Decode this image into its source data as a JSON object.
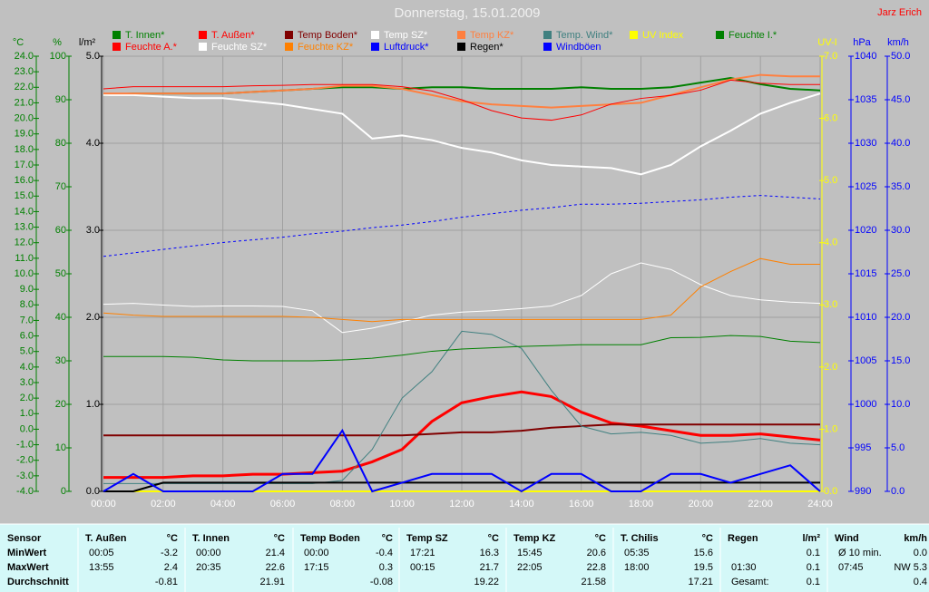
{
  "chart_data": {
    "type": "line",
    "title": "Donnerstag, 15.01.2009",
    "author": "Jarz Erich",
    "x": [
      0,
      1,
      2,
      3,
      4,
      5,
      6,
      7,
      8,
      9,
      10,
      11,
      12,
      13,
      14,
      15,
      16,
      17,
      18,
      19,
      20,
      21,
      22,
      23,
      24
    ],
    "xlim": [
      0,
      24
    ],
    "xticks": [
      {
        "value": 0,
        "label": "00:00"
      },
      {
        "value": 2,
        "label": "02:00"
      },
      {
        "value": 4,
        "label": "04:00"
      },
      {
        "value": 6,
        "label": "06:00"
      },
      {
        "value": 8,
        "label": "08:00"
      },
      {
        "value": 10,
        "label": "10:00"
      },
      {
        "value": 12,
        "label": "12:00"
      },
      {
        "value": 14,
        "label": "14:00"
      },
      {
        "value": 16,
        "label": "16:00"
      },
      {
        "value": 18,
        "label": "18:00"
      },
      {
        "value": 20,
        "label": "20:00"
      },
      {
        "value": 22,
        "label": "22:00"
      },
      {
        "value": 24,
        "label": "24:00"
      }
    ],
    "axes": [
      {
        "label": "°C",
        "color": "#008000",
        "lim": [
          -4,
          24
        ],
        "ticks": [
          {
            "value": -4,
            "label": "-4.0"
          },
          {
            "value": -3,
            "label": "-3.0"
          },
          {
            "value": -2,
            "label": "-2.0"
          },
          {
            "value": -1,
            "label": "-1.0"
          },
          {
            "value": 0,
            "label": "0.0"
          },
          {
            "value": 1,
            "label": "1.0"
          },
          {
            "value": 2,
            "label": "2.0"
          },
          {
            "value": 3,
            "label": "3.0"
          },
          {
            "value": 4,
            "label": "4.0"
          },
          {
            "value": 5,
            "label": "5.0"
          },
          {
            "value": 6,
            "label": "6.0"
          },
          {
            "value": 7,
            "label": "7.0"
          },
          {
            "value": 8,
            "label": "8.0"
          },
          {
            "value": 9,
            "label": "9.0"
          },
          {
            "value": 10,
            "label": "10.0"
          },
          {
            "value": 11,
            "label": "11.0"
          },
          {
            "value": 12,
            "label": "12.0"
          },
          {
            "value": 13,
            "label": "13.0"
          },
          {
            "value": 14,
            "label": "14.0"
          },
          {
            "value": 15,
            "label": "15.0"
          },
          {
            "value": 16,
            "label": "16.0"
          },
          {
            "value": 17,
            "label": "17.0"
          },
          {
            "value": 18,
            "label": "18.0"
          },
          {
            "value": 19,
            "label": "19.0"
          },
          {
            "value": 20,
            "label": "20.0"
          },
          {
            "value": 21,
            "label": "21.0"
          },
          {
            "value": 22,
            "label": "22.0"
          },
          {
            "value": 23,
            "label": "23.0"
          },
          {
            "value": 24,
            "label": "24.0"
          }
        ]
      },
      {
        "label": "%",
        "color": "#008000",
        "lim": [
          0,
          100
        ],
        "ticks": [
          0,
          10,
          20,
          30,
          40,
          50,
          60,
          70,
          80,
          90,
          100
        ]
      },
      {
        "label": "l/m²",
        "color": "#000000",
        "lim": [
          0,
          5
        ],
        "grid": true,
        "ticks": [
          {
            "value": 0,
            "label": "0.0"
          },
          {
            "value": 1,
            "label": "1.0"
          },
          {
            "value": 2,
            "label": "2.0"
          },
          {
            "value": 3,
            "label": "3.0"
          },
          {
            "value": 4,
            "label": "4.0"
          },
          {
            "value": 5,
            "label": "5.0"
          }
        ]
      },
      {
        "label": "UV-I",
        "color": "#ffff00",
        "lim": [
          0,
          7
        ],
        "ticks": [
          {
            "value": 0,
            "label": "0.0"
          },
          {
            "value": 1,
            "label": "1.0"
          },
          {
            "value": 2,
            "label": "2.0"
          },
          {
            "value": 3,
            "label": "3.0"
          },
          {
            "value": 4,
            "label": "4.0"
          },
          {
            "value": 5,
            "label": "5.0"
          },
          {
            "value": 6,
            "label": "6.0"
          },
          {
            "value": 7,
            "label": "7.0"
          }
        ]
      },
      {
        "label": "hPa",
        "color": "#0000ff",
        "lim": [
          990,
          1040
        ],
        "ticks": [
          990,
          995,
          1000,
          1005,
          1010,
          1015,
          1020,
          1025,
          1030,
          1035,
          1040
        ]
      },
      {
        "label": "km/h",
        "color": "#0000ff",
        "lim": [
          0,
          50
        ],
        "ticks": [
          {
            "value": 0,
            "label": "0.0"
          },
          {
            "value": 5,
            "label": "5.0"
          },
          {
            "value": 10,
            "label": "10.0"
          },
          {
            "value": 15,
            "label": "15.0"
          },
          {
            "value": 20,
            "label": "20.0"
          },
          {
            "value": 25,
            "label": "25.0"
          },
          {
            "value": 30,
            "label": "30.0"
          },
          {
            "value": 35,
            "label": "35.0"
          },
          {
            "value": 40,
            "label": "40.0"
          },
          {
            "value": 45,
            "label": "45.0"
          },
          {
            "value": 50,
            "label": "50.0"
          }
        ]
      }
    ],
    "series": [
      {
        "name": "T. Innen*",
        "color": "#008000",
        "axis": 0,
        "line_width": 2,
        "values": [
          21.5,
          21.6,
          21.6,
          21.6,
          21.6,
          21.7,
          21.8,
          21.9,
          22.0,
          22.0,
          21.9,
          22.0,
          22.0,
          21.9,
          21.9,
          21.9,
          22.0,
          21.9,
          21.9,
          22.0,
          22.3,
          22.6,
          22.2,
          21.9,
          21.8
        ]
      },
      {
        "name": "T. Außen*",
        "color": "#ff0000",
        "axis": 0,
        "line_width": 3,
        "values": [
          -3.1,
          -3.1,
          -3.1,
          -3.0,
          -3.0,
          -2.9,
          -2.9,
          -2.8,
          -2.7,
          -2.1,
          -1.3,
          0.5,
          1.7,
          2.1,
          2.4,
          2.1,
          1.1,
          0.4,
          0.2,
          -0.1,
          -0.4,
          -0.4,
          -0.3,
          -0.5,
          -0.7
        ]
      },
      {
        "name": "Temp Boden*",
        "color": "#800000",
        "axis": 0,
        "line_width": 2,
        "values": [
          -0.4,
          -0.4,
          -0.4,
          -0.4,
          -0.4,
          -0.4,
          -0.4,
          -0.4,
          -0.4,
          -0.4,
          -0.4,
          -0.3,
          -0.2,
          -0.2,
          -0.1,
          0.1,
          0.2,
          0.3,
          0.3,
          0.3,
          0.3,
          0.3,
          0.3,
          0.3,
          0.3
        ]
      },
      {
        "name": "Temp SZ*",
        "color": "#ffffff",
        "axis": 0,
        "line_width": 2,
        "values": [
          21.5,
          21.5,
          21.4,
          21.3,
          21.3,
          21.1,
          20.9,
          20.6,
          20.3,
          18.7,
          18.9,
          18.6,
          18.1,
          17.8,
          17.3,
          17.0,
          16.9,
          16.8,
          16.4,
          17.0,
          18.2,
          19.2,
          20.3,
          21.0,
          21.6
        ]
      },
      {
        "name": "Temp KZ*",
        "color": "#ff8040",
        "axis": 0,
        "line_width": 2,
        "values": [
          21.6,
          21.6,
          21.6,
          21.6,
          21.6,
          21.7,
          21.8,
          21.9,
          22.1,
          22.1,
          21.9,
          21.5,
          21.1,
          20.9,
          20.8,
          20.7,
          20.8,
          20.9,
          21.0,
          21.5,
          22.0,
          22.5,
          22.8,
          22.7,
          22.7
        ]
      },
      {
        "name": "Temp. Wind*",
        "color": "#408080",
        "axis": 0,
        "line_width": 1,
        "values": [
          -3.5,
          -3.5,
          -3.5,
          -3.5,
          -3.5,
          -3.5,
          -3.5,
          -3.5,
          -3.3,
          -1.3,
          2.0,
          3.7,
          6.3,
          6.1,
          5.2,
          2.5,
          0.2,
          -0.3,
          -0.2,
          -0.4,
          -0.9,
          -0.8,
          -0.6,
          -0.9,
          -1.0
        ]
      },
      {
        "name": "UV Index",
        "color": "#ffff00",
        "axis": 3,
        "line_width": 2,
        "values": [
          0,
          0,
          0,
          0,
          0,
          0,
          0,
          0,
          0,
          0,
          0,
          0,
          0,
          0,
          0,
          0,
          0,
          0,
          0,
          0,
          0,
          0,
          0,
          0,
          0
        ]
      },
      {
        "name": "Feuchte I.*",
        "color": "#008000",
        "axis": 1,
        "line_width": 1,
        "values": [
          31,
          31,
          31,
          30.8,
          30.2,
          30,
          30,
          30,
          30.2,
          30.6,
          31.3,
          32.2,
          32.7,
          33,
          33.3,
          33.5,
          33.7,
          33.7,
          33.7,
          35.3,
          35.4,
          35.8,
          35.6,
          34.5,
          34.2
        ]
      },
      {
        "name": "Feuchte A.*",
        "color": "#ff0000",
        "axis": 1,
        "line_width": 1,
        "values": [
          92.5,
          93,
          93,
          93,
          93,
          93.2,
          93.3,
          93.5,
          93.5,
          93.5,
          93,
          92,
          90,
          87.5,
          85.8,
          85.3,
          86.5,
          89,
          90.3,
          91,
          92.2,
          94.5,
          93.8,
          93.5,
          93.5
        ]
      },
      {
        "name": "Feuchte SZ*",
        "color": "#ffffff",
        "axis": 1,
        "line_width": 1,
        "values": [
          43,
          43.2,
          42.8,
          42.5,
          42.6,
          42.6,
          42.5,
          41.5,
          36.5,
          37.5,
          39,
          40.5,
          41.2,
          41.5,
          42,
          42.6,
          45,
          50,
          52.5,
          51,
          47.5,
          45,
          44,
          43.5,
          43.2
        ]
      },
      {
        "name": "Feuchte KZ*",
        "color": "#ff8000",
        "axis": 1,
        "line_width": 1,
        "values": [
          41,
          40.5,
          40.2,
          40.2,
          40.2,
          40.2,
          40.2,
          40,
          39.5,
          39,
          39.5,
          39.5,
          39.5,
          39.5,
          39.5,
          39.5,
          39.5,
          39.5,
          39.5,
          40.5,
          47,
          50.5,
          53.5,
          52.2,
          52.2
        ]
      },
      {
        "name": "Luftdruck*",
        "color": "#0000ff",
        "axis": 4,
        "line_width": 1,
        "line_style": "dotted",
        "values": [
          1017.0,
          1017.4,
          1017.8,
          1018.2,
          1018.6,
          1018.9,
          1019.2,
          1019.6,
          1019.9,
          1020.3,
          1020.6,
          1021.0,
          1021.5,
          1021.9,
          1022.3,
          1022.6,
          1023.0,
          1023.0,
          1023.1,
          1023.3,
          1023.5,
          1023.8,
          1024.0,
          1023.8,
          1023.6
        ]
      },
      {
        "name": "Regen*",
        "color": "#000000",
        "axis": 2,
        "line_width": 2,
        "values": [
          0,
          0,
          0.1,
          0.1,
          0.1,
          0.1,
          0.1,
          0.1,
          0.1,
          0.1,
          0.1,
          0.1,
          0.1,
          0.1,
          0.1,
          0.1,
          0.1,
          0.1,
          0.1,
          0.1,
          0.1,
          0.1,
          0.1,
          0.1,
          0.1
        ]
      },
      {
        "name": "Windböen",
        "color": "#0000ff",
        "axis": 5,
        "line_width": 2,
        "values": [
          0,
          2,
          0,
          0,
          0,
          0,
          2,
          2,
          7,
          0,
          1,
          2,
          2,
          2,
          0,
          2,
          2,
          0,
          0,
          2,
          2,
          1,
          2,
          3,
          0
        ]
      }
    ]
  },
  "stats": {
    "header": "Sensor",
    "row_labels": [
      "MinWert",
      "MaxWert",
      "Durchschnitt"
    ],
    "groups": [
      {
        "name": "T. Außen",
        "unit": "°C",
        "rows": [
          [
            "00:05",
            "-3.2"
          ],
          [
            "13:55",
            "2.4"
          ],
          [
            null,
            "-0.81"
          ]
        ]
      },
      {
        "name": "T. Innen",
        "unit": "°C",
        "rows": [
          [
            "00:00",
            "21.4"
          ],
          [
            "20:35",
            "22.6"
          ],
          [
            null,
            "21.91"
          ]
        ]
      },
      {
        "name": "Temp Boden",
        "unit": "°C",
        "rows": [
          [
            "00:00",
            "-0.4"
          ],
          [
            "17:15",
            "0.3"
          ],
          [
            null,
            "-0.08"
          ]
        ]
      },
      {
        "name": "Temp SZ",
        "unit": "°C",
        "rows": [
          [
            "17:21",
            "16.3"
          ],
          [
            "00:15",
            "21.7"
          ],
          [
            null,
            "19.22"
          ]
        ]
      },
      {
        "name": "Temp KZ",
        "unit": "°C",
        "rows": [
          [
            "15:45",
            "20.6"
          ],
          [
            "22:05",
            "22.8"
          ],
          [
            null,
            "21.58"
          ]
        ]
      },
      {
        "name": "T. Chilis",
        "unit": "°C",
        "rows": [
          [
            "05:35",
            "15.6"
          ],
          [
            "18:00",
            "19.5"
          ],
          [
            null,
            "17.21"
          ]
        ]
      },
      {
        "name": "Regen",
        "unit": "l/m²",
        "rows": [
          [
            null,
            "0.1"
          ],
          [
            "01:30",
            "0.1"
          ],
          [
            "Gesamt:",
            "0.1"
          ]
        ]
      },
      {
        "name": "Wind",
        "unit": "km/h",
        "rows": [
          [
            "Ø 10 min.",
            "0.0"
          ],
          [
            "07:45",
            "NW 5.3"
          ],
          [
            null,
            "0.4"
          ]
        ]
      }
    ]
  }
}
